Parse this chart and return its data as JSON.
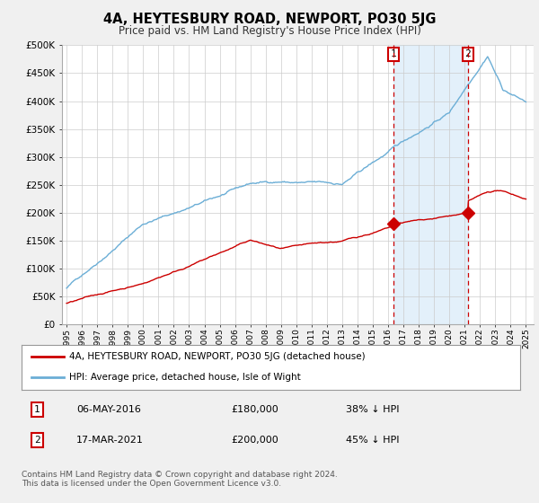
{
  "title": "4A, HEYTESBURY ROAD, NEWPORT, PO30 5JG",
  "subtitle": "Price paid vs. HM Land Registry's House Price Index (HPI)",
  "hpi_color": "#6baed6",
  "hpi_fill_color": "#ddeeff",
  "price_color": "#cc0000",
  "vline_color": "#cc0000",
  "marker_color": "#cc0000",
  "ylim": [
    0,
    500000
  ],
  "yticks": [
    0,
    50000,
    100000,
    150000,
    200000,
    250000,
    300000,
    350000,
    400000,
    450000,
    500000
  ],
  "ytick_labels": [
    "£0",
    "£50K",
    "£100K",
    "£150K",
    "£200K",
    "£250K",
    "£300K",
    "£350K",
    "£400K",
    "£450K",
    "£500K"
  ],
  "xlim_start": 1994.7,
  "xlim_end": 2025.5,
  "sale1_x": 2016.35,
  "sale1_y": 180000,
  "sale1_label": "1",
  "sale1_date": "06-MAY-2016",
  "sale1_price": "£180,000",
  "sale1_hpi": "38% ↓ HPI",
  "sale2_x": 2021.21,
  "sale2_y": 200000,
  "sale2_label": "2",
  "sale2_date": "17-MAR-2021",
  "sale2_price": "£200,000",
  "sale2_hpi": "45% ↓ HPI",
  "legend_line1": "4A, HEYTESBURY ROAD, NEWPORT, PO30 5JG (detached house)",
  "legend_line2": "HPI: Average price, detached house, Isle of Wight",
  "footnote": "Contains HM Land Registry data © Crown copyright and database right 2024.\nThis data is licensed under the Open Government Licence v3.0.",
  "background_color": "#f0f0f0",
  "plot_background": "#ffffff"
}
